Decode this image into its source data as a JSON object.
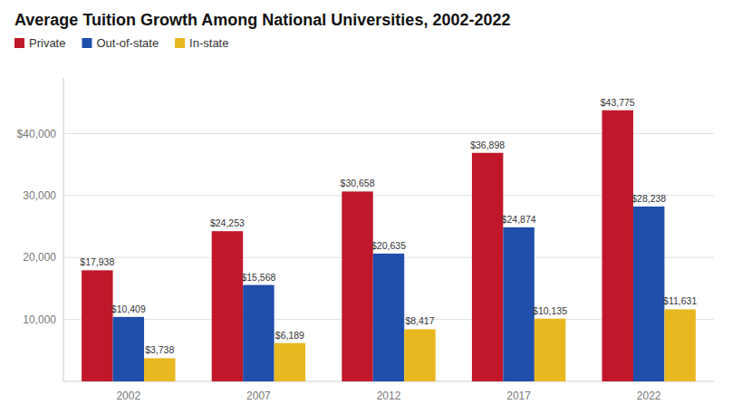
{
  "chart_data": {
    "type": "bar",
    "title": "Average Tuition Growth Among National Universities, 2002-2022",
    "categories": [
      "2002",
      "2007",
      "2012",
      "2017",
      "2022"
    ],
    "series": [
      {
        "name": "Private",
        "color": "#c0182a",
        "values": [
          17938,
          24253,
          30658,
          36898,
          43775
        ],
        "value_labels": [
          "$17,938",
          "$24,253",
          "$30,658",
          "$36,898",
          "$43,775"
        ]
      },
      {
        "name": "Out-of-state",
        "color": "#1f4eab",
        "values": [
          10409,
          15568,
          20635,
          24874,
          28238
        ],
        "value_labels": [
          "$10,409",
          "$15,568",
          "$20,635",
          "$24,874",
          "$28,238"
        ]
      },
      {
        "name": "In-state",
        "color": "#e8b820",
        "values": [
          3738,
          6189,
          8417,
          10135,
          11631
        ],
        "value_labels": [
          "$3,738",
          "$6,189",
          "$8,417",
          "$10,135",
          "$11,631"
        ]
      }
    ],
    "ylim": [
      0,
      49000
    ],
    "yticks": [
      {
        "value": 10000,
        "label": "10,000"
      },
      {
        "value": 20000,
        "label": "20,000"
      },
      {
        "value": 30000,
        "label": "30,000"
      },
      {
        "value": 40000,
        "label": "$40,000"
      }
    ],
    "grid": true,
    "legend": "upper left",
    "data_labels": true
  }
}
